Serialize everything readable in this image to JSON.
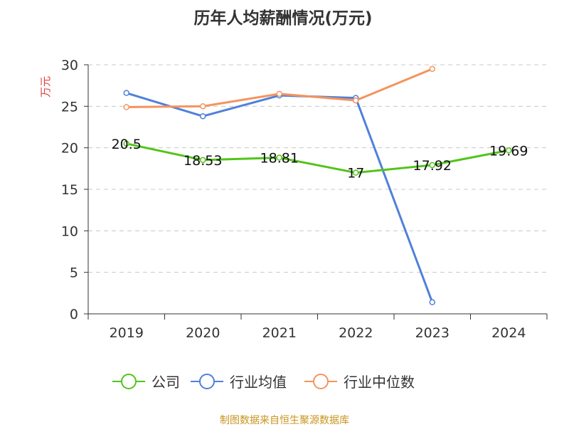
{
  "chart_data": {
    "type": "line",
    "title": "历年人均薪酬情况(万元)",
    "ylabel": "万元",
    "xlabel": "",
    "categories": [
      "2019",
      "2020",
      "2021",
      "2022",
      "2023",
      "2024"
    ],
    "ylim": [
      0,
      30
    ],
    "yticks": [
      0,
      5,
      10,
      15,
      20,
      25,
      30
    ],
    "grid": true,
    "legend_position": "bottom",
    "series": [
      {
        "name": "公司",
        "color": "#52c41a",
        "values": [
          20.5,
          18.53,
          18.81,
          17,
          17.92,
          19.69
        ],
        "labels": [
          "20.5",
          "18.53",
          "18.81",
          "17",
          "17.92",
          "19.69"
        ]
      },
      {
        "name": "行业均值",
        "color": "#4f81d9",
        "values": [
          26.6,
          23.8,
          26.3,
          26.0,
          1.4,
          null
        ]
      },
      {
        "name": "行业中位数",
        "color": "#f4945e",
        "values": [
          24.9,
          25.0,
          26.5,
          25.7,
          29.5,
          null
        ]
      }
    ]
  },
  "source": "制图数据来自恒生聚源数据库"
}
